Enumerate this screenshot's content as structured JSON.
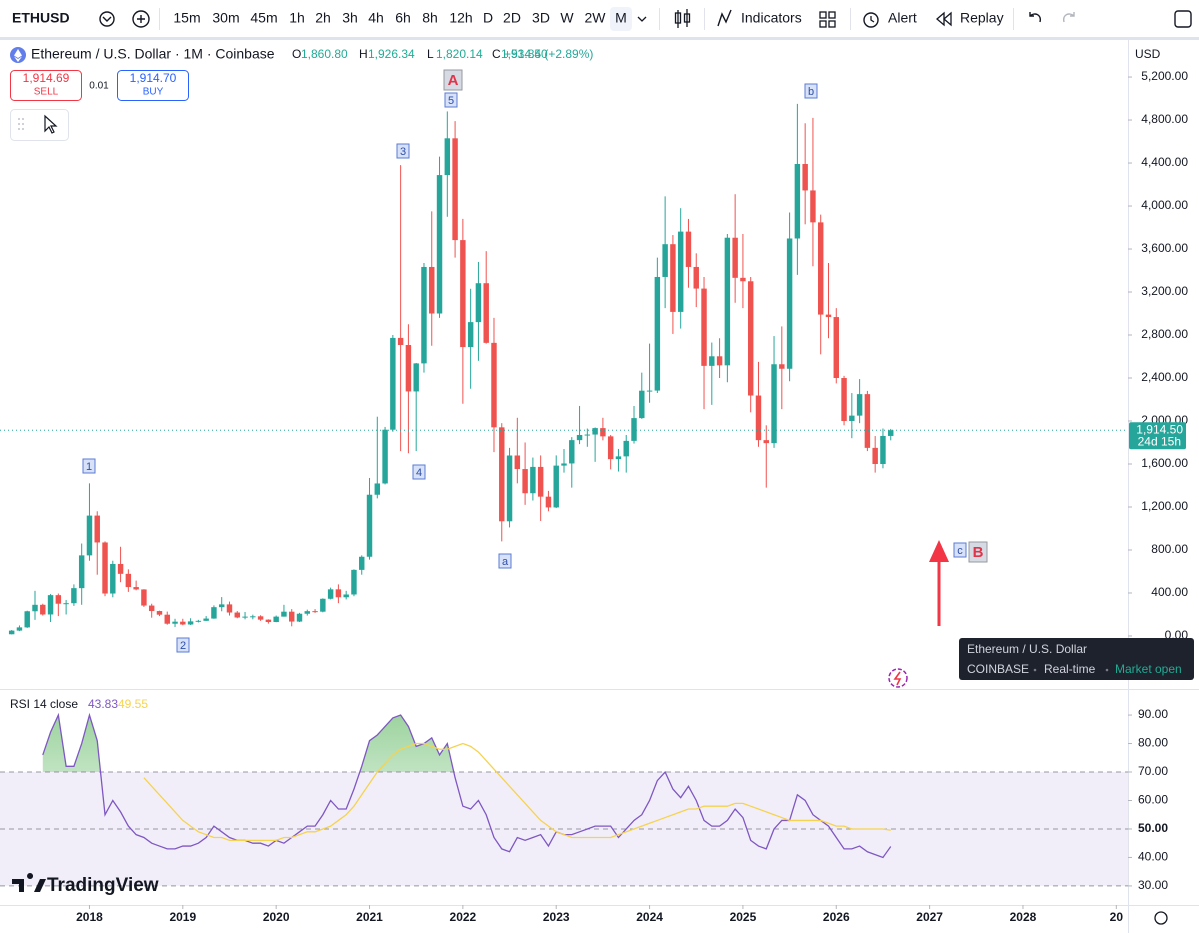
{
  "toolbar": {
    "symbol": "ETHUSD",
    "intervals": [
      "15m",
      "30m",
      "45m",
      "1h",
      "2h",
      "3h",
      "4h",
      "6h",
      "8h",
      "12h",
      "D",
      "2D",
      "3D",
      "W",
      "2W",
      "M"
    ],
    "active_interval": "M",
    "buttons": [
      "Indicators",
      "Alert",
      "Replay"
    ]
  },
  "legend": {
    "title": "Ethereum / U.S. Dollar · 1M · Coinbase",
    "ohlc": [
      {
        "key": "O",
        "value": "1,860.80"
      },
      {
        "key": "H",
        "value": "1,926.34"
      },
      {
        "key": "L",
        "value": "1,820.14"
      },
      {
        "key": "C",
        "value": "1,914.50"
      }
    ],
    "change": "+53.84 (+2.89%)"
  },
  "trade": {
    "sell": {
      "price": "1,914.69",
      "label": "SELL"
    },
    "spread": "0.01",
    "buy": {
      "price": "1,914.70",
      "label": "BUY"
    }
  },
  "price_axis": {
    "currency": "USD",
    "last_price": "1,914.50",
    "countdown": "24d 15h"
  },
  "tooltip": {
    "title": "Ethereum / U.S. Dollar",
    "items": [
      "COINBASE",
      "Real-time",
      "Market open"
    ]
  },
  "annotations": [
    "A",
    "5",
    "3",
    "1",
    "2",
    "4",
    "a",
    "b",
    "c",
    "B"
  ],
  "logo": "TradingView",
  "chart_data": [
    {
      "type": "candlestick",
      "up_color": "#26a69a",
      "down_color": "#ef5350",
      "open": [
        16,
        50,
        80,
        230,
        290,
        200,
        380,
        300,
        305,
        445,
        750,
        1120,
        870,
        395,
        670,
        578,
        455,
        433,
        283,
        232,
        198,
        114,
        133,
        107,
        136,
        141,
        162,
        268,
        294,
        218,
        172,
        180,
        183,
        152,
        130,
        180,
        226,
        134,
        207,
        231,
        226,
        346,
        434,
        360,
        386,
        615,
        737,
        1314,
        1419,
        1919,
        2773,
        2707,
        2275,
        2536,
        3433,
        3000,
        4288,
        4630,
        3683,
        2688,
        2920,
        3282,
        2727,
        1941,
        1067,
        1679,
        1553,
        1328,
        1573,
        1296,
        1196,
        1585,
        1605,
        1822,
        1870,
        1874,
        1934,
        1857,
        1645,
        1671,
        1815,
        2027,
        2282,
        2283,
        3340,
        3645,
        3015,
        3762,
        3433,
        3232,
        2513,
        2602,
        2518,
        3705,
        3332,
        3300,
        2237,
        1822,
        1794,
        2528,
        2486,
        3698,
        4391,
        4145,
        3848,
        2990,
        2967,
        2400,
        2000,
        2050,
        2250,
        1750,
        1600,
        1860.8
      ],
      "high": [
        55,
        98,
        235,
        420,
        300,
        390,
        395,
        335,
        480,
        860,
        1420,
        1160,
        880,
        700,
        830,
        620,
        515,
        435,
        300,
        235,
        227,
        160,
        160,
        165,
        150,
        185,
        285,
        362,
        320,
        232,
        223,
        198,
        193,
        155,
        190,
        290,
        250,
        215,
        245,
        250,
        350,
        450,
        480,
        420,
        620,
        750,
        1470,
        2040,
        1945,
        2800,
        4380,
        2900,
        2540,
        3470,
        3950,
        4460,
        4880,
        4790,
        3880,
        3230,
        3480,
        3580,
        2960,
        1980,
        1750,
        2030,
        1800,
        1660,
        1680,
        1350,
        1680,
        1740,
        1850,
        2140,
        1930,
        1940,
        2030,
        1870,
        1740,
        1870,
        2140,
        2450,
        2720,
        3520,
        4090,
        3730,
        3980,
        3880,
        3560,
        3340,
        2730,
        2770,
        3740,
        4110,
        3740,
        3340,
        2550,
        1960,
        2790,
        2880,
        3940,
        4950,
        4770,
        4820,
        3920,
        3470,
        3050,
        2420,
        2260,
        2390,
        2280,
        1860,
        1930,
        1926.34
      ],
      "low": [
        15,
        45,
        75,
        150,
        190,
        130,
        185,
        200,
        280,
        290,
        700,
        570,
        370,
        360,
        500,
        410,
        425,
        270,
        170,
        185,
        105,
        84,
        100,
        102,
        126,
        140,
        160,
        230,
        190,
        165,
        155,
        155,
        140,
        115,
        128,
        180,
        90,
        130,
        190,
        215,
        220,
        340,
        305,
        340,
        370,
        570,
        710,
        1280,
        1410,
        1900,
        1720,
        1700,
        1720,
        2450,
        2700,
        2960,
        3900,
        3520,
        2160,
        2300,
        2560,
        2720,
        1710,
        880,
        1010,
        1420,
        1220,
        1260,
        1070,
        1160,
        1190,
        1520,
        1380,
        1785,
        1760,
        1620,
        1820,
        1550,
        1530,
        1520,
        1790,
        2020,
        2170,
        2260,
        3050,
        2810,
        2860,
        3240,
        3060,
        2110,
        2150,
        2400,
        2360,
        3100,
        3050,
        2080,
        1760,
        1380,
        1750,
        2110,
        2370,
        3360,
        3830,
        3440,
        2620,
        2770,
        2350,
        1960,
        1840,
        1980,
        1720,
        1520,
        1560,
        1820.14
      ],
      "close": [
        50,
        80,
        230,
        290,
        200,
        380,
        300,
        305,
        445,
        750,
        1120,
        870,
        395,
        670,
        578,
        455,
        433,
        283,
        232,
        198,
        114,
        133,
        107,
        136,
        141,
        162,
        268,
        294,
        218,
        172,
        180,
        183,
        152,
        130,
        180,
        226,
        134,
        207,
        231,
        226,
        346,
        434,
        360,
        386,
        615,
        737,
        1314,
        1419,
        1919,
        2773,
        2707,
        2275,
        2536,
        3433,
        3000,
        4288,
        4630,
        3683,
        2688,
        2920,
        3282,
        2727,
        1941,
        1067,
        1679,
        1553,
        1328,
        1573,
        1296,
        1196,
        1585,
        1605,
        1822,
        1870,
        1874,
        1934,
        1857,
        1645,
        1671,
        1815,
        2027,
        2282,
        2283,
        3340,
        3645,
        3015,
        3762,
        3433,
        3232,
        2513,
        2602,
        2518,
        3705,
        3332,
        3300,
        2237,
        1822,
        1794,
        2528,
        2486,
        3698,
        4391,
        4145,
        3848,
        2990,
        2967,
        2400,
        2000,
        2050,
        2250,
        1750,
        1600,
        1860.8,
        1914.5
      ],
      "xlim": [
        -1.5,
        143.5
      ],
      "xticks": [
        {
          "value": 10,
          "label": "2018"
        },
        {
          "value": 22,
          "label": "2019"
        },
        {
          "value": 34,
          "label": "2020"
        },
        {
          "value": 46,
          "label": "2021"
        },
        {
          "value": 58,
          "label": "2022"
        },
        {
          "value": 70,
          "label": "2023"
        },
        {
          "value": 82,
          "label": "2024"
        },
        {
          "value": 94,
          "label": "2025"
        },
        {
          "value": 106,
          "label": "2026"
        },
        {
          "value": 118,
          "label": "2027"
        },
        {
          "value": 130,
          "label": "2028"
        },
        {
          "value": 142,
          "label": "20"
        }
      ],
      "ylim": [
        -484,
        5526
      ],
      "yticks": [
        {
          "value": 0,
          "label": "0.00"
        },
        {
          "value": 400,
          "label": "400.00"
        },
        {
          "value": 800,
          "label": "800.00"
        },
        {
          "value": 1200,
          "label": "1,200.00"
        },
        {
          "value": 1600,
          "label": "1,600.00"
        },
        {
          "value": 2000,
          "label": "2,000.00"
        },
        {
          "value": 2400,
          "label": "2,400.00"
        },
        {
          "value": 2800,
          "label": "2,800.00"
        },
        {
          "value": 3200,
          "label": "3,200.00"
        },
        {
          "value": 3600,
          "label": "3,600.00"
        },
        {
          "value": 4000,
          "label": "4,000.00"
        },
        {
          "value": 4400,
          "label": "4,400.00"
        },
        {
          "value": 4800,
          "label": "4,800.00"
        },
        {
          "value": 5200,
          "label": "5,200.00"
        }
      ],
      "grid": false
    },
    {
      "type": "line",
      "title": "RSI 14 close",
      "series": [
        {
          "color": "#7e57c2",
          "last_value_label": "43.83",
          "values": [
            null,
            null,
            null,
            null,
            76,
            84,
            90,
            72,
            72,
            80,
            90,
            81,
            55,
            60,
            56,
            51,
            48,
            47,
            45,
            44,
            43,
            43,
            44,
            44,
            45,
            47,
            51,
            49,
            47,
            46,
            46,
            45,
            45,
            44,
            46,
            45,
            47,
            49,
            51,
            51,
            55,
            60,
            57,
            57,
            64,
            72,
            81,
            83,
            86,
            89,
            90,
            86,
            79,
            80,
            82,
            76,
            80,
            68,
            58,
            57,
            60,
            55,
            47,
            43,
            42,
            47,
            46,
            47,
            48,
            44,
            49,
            48,
            48,
            49,
            50,
            51,
            51,
            51,
            47,
            50,
            53,
            55,
            60,
            67,
            70,
            64,
            61,
            65,
            60,
            53,
            51,
            51,
            53,
            57,
            54,
            46,
            44,
            43,
            50,
            53,
            53,
            62,
            60,
            55,
            53,
            51,
            47,
            43,
            43,
            44,
            42,
            41,
            40,
            43.83
          ]
        },
        {
          "color": "#f5d34f",
          "last_value_label": "49.55",
          "values": [
            null,
            null,
            null,
            null,
            null,
            null,
            null,
            null,
            null,
            null,
            null,
            null,
            null,
            null,
            null,
            null,
            null,
            68,
            65,
            62,
            59,
            56,
            53,
            51,
            49,
            48,
            47,
            47,
            46,
            46,
            46,
            46,
            46,
            46,
            46,
            47,
            47,
            48,
            49,
            49,
            50,
            51,
            53,
            55,
            58,
            62,
            66,
            70,
            73,
            76,
            78,
            79,
            80,
            80,
            79,
            78,
            78,
            79,
            80,
            79,
            77,
            74,
            71,
            68,
            65,
            62,
            59,
            56,
            53,
            51,
            49,
            48,
            47,
            47,
            47,
            47,
            47,
            47,
            48,
            49,
            50,
            51,
            52,
            53,
            54,
            55,
            56,
            57,
            57,
            58,
            58,
            58,
            58,
            59,
            59,
            58,
            57,
            56,
            55,
            54,
            53,
            53,
            53,
            53,
            53,
            52,
            51,
            51,
            50,
            50,
            50,
            50,
            50,
            49.55
          ]
        }
      ],
      "xlim": [
        -1.5,
        143.5
      ],
      "ylim": [
        23.3,
        98.8
      ],
      "yticks": [
        {
          "value": 30,
          "label": "30.00"
        },
        {
          "value": 40,
          "label": "40.00"
        },
        {
          "value": 50,
          "label": "50.00"
        },
        {
          "value": 60,
          "label": "60.00"
        },
        {
          "value": 70,
          "label": "70.00"
        },
        {
          "value": 80,
          "label": "80.00"
        },
        {
          "value": 90,
          "label": "90.00"
        }
      ],
      "overbought": 70,
      "middle": 50,
      "oversold": 30,
      "overbought_fill": "#4caf50"
    }
  ]
}
